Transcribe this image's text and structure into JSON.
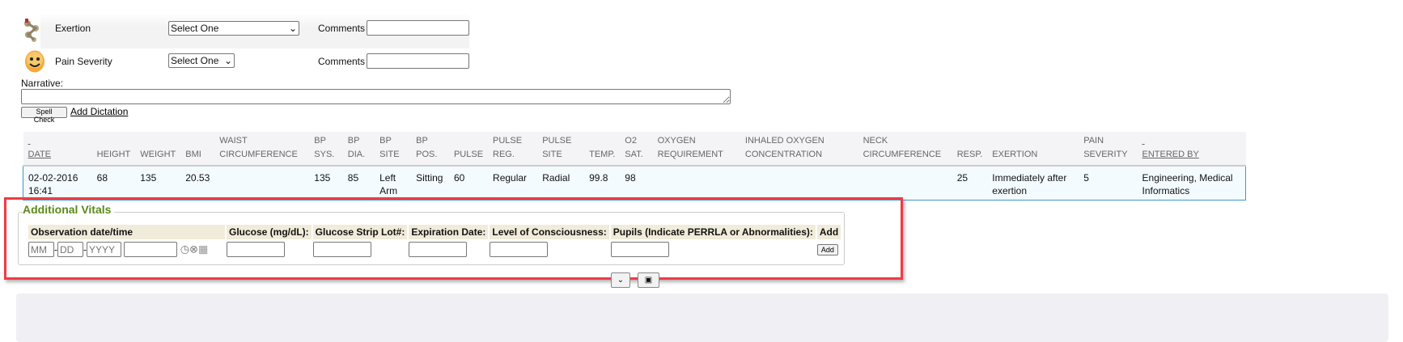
{
  "exertion": {
    "label": "Exertion",
    "select": "Select One",
    "comments_label": "Comments",
    "comments_value": ""
  },
  "pain": {
    "label": "Pain Severity",
    "select": "Select One",
    "comments_label": "Comments",
    "comments_value": ""
  },
  "narrative": {
    "label": "Narrative:",
    "value": "",
    "spell_check": "Spell Check",
    "add_dictation": "Add Dictation"
  },
  "vitals_table": {
    "headers": [
      [
        "",
        "DATE"
      ],
      [
        "",
        "HEIGHT"
      ],
      [
        "",
        "WEIGHT"
      ],
      [
        "",
        "BMI"
      ],
      [
        "WAIST",
        "CIRCUMFERENCE"
      ],
      [
        "BP",
        "SYS."
      ],
      [
        "BP",
        "DIA."
      ],
      [
        "BP",
        "SITE"
      ],
      [
        "BP",
        "POS."
      ],
      [
        "",
        "PULSE"
      ],
      [
        "PULSE",
        "REG."
      ],
      [
        "PULSE",
        "SITE"
      ],
      [
        "",
        "TEMP."
      ],
      [
        "O2",
        "SAT."
      ],
      [
        "OXYGEN",
        "REQUIREMENT"
      ],
      [
        "INHALED OXYGEN",
        "CONCENTRATION"
      ],
      [
        "NECK",
        "CIRCUMFERENCE"
      ],
      [
        "",
        "RESP."
      ],
      [
        "",
        "EXERTION"
      ],
      [
        "PAIN",
        "SEVERITY"
      ],
      [
        "",
        "ENTERED BY"
      ]
    ],
    "rows": [
      [
        "02-02-2016 16:41",
        "68",
        "135",
        "20.53",
        "",
        "135",
        "85",
        "Left Arm",
        "Sitting",
        "60",
        "Regular",
        "Radial",
        "99.8",
        "98",
        "",
        "",
        "",
        "25",
        "Immediately after exertion",
        "5",
        "Engineering, Medical Informatics"
      ]
    ]
  },
  "additional_vitals": {
    "title": "Additional Vitals",
    "headers": [
      "Observation date/time",
      "Glucose (mg/dL):",
      "Glucose Strip Lot#:",
      "Expiration Date:",
      "Level of Consciousness:",
      "Pupils (Indicate PERRLA or Abnormalities):",
      "Add"
    ],
    "date_placeholders": {
      "mm": "MM",
      "dd": "DD",
      "yyyy": "YYYY"
    },
    "add_button": "Add"
  },
  "colors": {
    "highlight": "#ef3b44",
    "legend": "#5a8a1a",
    "row_border": "#3a9ad0"
  }
}
